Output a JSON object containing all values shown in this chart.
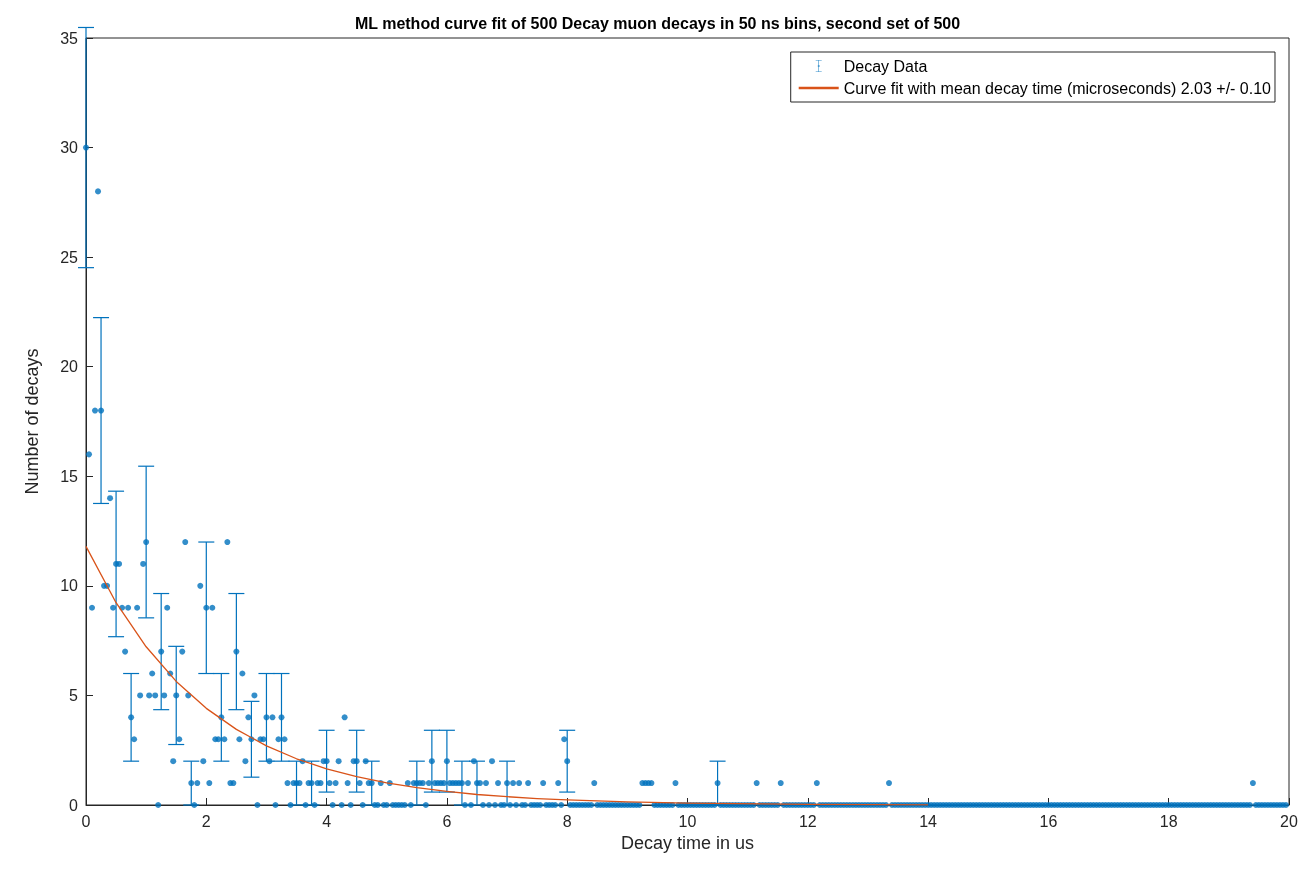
{
  "chart_data": {
    "type": "scatter",
    "title": "ML method curve fit of 500 Decay muon decays in 50 ns bins, second set of 500",
    "xlabel": "Decay time in us",
    "ylabel": "Number of decays",
    "xlim": [
      0,
      20
    ],
    "ylim": [
      0,
      35
    ],
    "xticks": [
      0,
      2,
      4,
      6,
      8,
      10,
      12,
      14,
      16,
      18,
      20
    ],
    "yticks": [
      0,
      5,
      10,
      15,
      20,
      25,
      30,
      35
    ],
    "grid": false,
    "legend": "top right",
    "series": [
      {
        "name": "Decay Data",
        "color": "#0072bd",
        "marker": "circle",
        "x": [
          0,
          0.05,
          0.1,
          0.15,
          0.2,
          0.25,
          0.3,
          0.35,
          0.4,
          0.45,
          0.5,
          0.55,
          0.6,
          0.65,
          0.7,
          0.75,
          0.8,
          0.85,
          0.9,
          0.95,
          1,
          1.05,
          1.1,
          1.15,
          1.2,
          1.25,
          1.3,
          1.35,
          1.4,
          1.45,
          1.5,
          1.55,
          1.6,
          1.65,
          1.7,
          1.75,
          1.8,
          1.85,
          1.9,
          1.95,
          2,
          2.05,
          2.1,
          2.15,
          2.2,
          2.25,
          2.3,
          2.35,
          2.4,
          2.45,
          2.5,
          2.55,
          2.6,
          2.65,
          2.7,
          2.75,
          2.8,
          2.85,
          2.9,
          2.95,
          3,
          3.05,
          3.1,
          3.15,
          3.2,
          3.25,
          3.3,
          3.35,
          3.4,
          3.45,
          3.5,
          3.55,
          3.6,
          3.65,
          3.7,
          3.75,
          3.8,
          3.85,
          3.9,
          3.95,
          4,
          4.05,
          4.1,
          4.15,
          4.2,
          4.25,
          4.3,
          4.35,
          4.4,
          4.45,
          4.5,
          4.55,
          4.6,
          4.65,
          4.7,
          4.75,
          4.8,
          4.85,
          4.9,
          4.95,
          5,
          5.05,
          5.1,
          5.15,
          5.2,
          5.25,
          5.3,
          5.35,
          5.4,
          5.45,
          5.5,
          5.55,
          5.6,
          5.65,
          5.7,
          5.75,
          5.8,
          5.85,
          5.9,
          5.95,
          6,
          6.05,
          6.1,
          6.15,
          6.2,
          6.25,
          6.3,
          6.35,
          6.4,
          6.45,
          6.5,
          6.55,
          6.6,
          6.65,
          6.7,
          6.75,
          6.8,
          6.85,
          6.9,
          6.95,
          7,
          7.05,
          7.1,
          7.15,
          7.2,
          7.25,
          7.3,
          7.35,
          7.4,
          7.45,
          7.5,
          7.55,
          7.6,
          7.65,
          7.7,
          7.75,
          7.8,
          7.85,
          7.9,
          7.95,
          8,
          8.05,
          8.1,
          8.15,
          8.2,
          8.25,
          8.3,
          8.35,
          8.4,
          8.45,
          8.5,
          8.55,
          8.6,
          8.65,
          8.7,
          8.75,
          8.8,
          8.85,
          8.9,
          8.95,
          9,
          9.05,
          9.1,
          9.15,
          9.2,
          9.25,
          9.3,
          9.35,
          9.4,
          9.45,
          9.5,
          9.55,
          9.6,
          9.65,
          9.7,
          9.75,
          9.8,
          9.85,
          9.9,
          9.95,
          10,
          10.05,
          10.1,
          10.15,
          10.2,
          10.25,
          10.3,
          10.35,
          10.4,
          10.45,
          10.5,
          10.55,
          10.6,
          10.65,
          10.7,
          10.75,
          10.8,
          10.85,
          10.9,
          10.95,
          11,
          11.05,
          11.1,
          11.15,
          11.2,
          11.25,
          11.3,
          11.35,
          11.4,
          11.45,
          11.5,
          11.55,
          11.6,
          11.65,
          11.7,
          11.75,
          11.8,
          11.85,
          11.9,
          11.95,
          12,
          12.05,
          12.1,
          12.15,
          12.2,
          12.25,
          12.3,
          12.35,
          12.4,
          12.45,
          12.5,
          12.55,
          12.6,
          12.65,
          12.7,
          12.75,
          12.8,
          12.85,
          12.9,
          12.95,
          13,
          13.05,
          13.1,
          13.15,
          13.2,
          13.25,
          13.3,
          13.35,
          13.4,
          13.45,
          13.5,
          13.55,
          13.6,
          13.65,
          13.7,
          13.75,
          13.8,
          13.85,
          13.9,
          13.95,
          14,
          14.05,
          14.1,
          14.15,
          14.2,
          14.25,
          14.3,
          14.35,
          14.4,
          14.45,
          14.5,
          14.55,
          14.6,
          14.65,
          14.7,
          14.75,
          14.8,
          14.85,
          14.9,
          14.95,
          15,
          15.05,
          15.1,
          15.15,
          15.2,
          15.25,
          15.3,
          15.35,
          15.4,
          15.45,
          15.5,
          15.55,
          15.6,
          15.65,
          15.7,
          15.75,
          15.8,
          15.85,
          15.9,
          15.95,
          16,
          16.05,
          16.1,
          16.15,
          16.2,
          16.25,
          16.3,
          16.35,
          16.4,
          16.45,
          16.5,
          16.55,
          16.6,
          16.65,
          16.7,
          16.75,
          16.8,
          16.85,
          16.9,
          16.95,
          17,
          17.05,
          17.1,
          17.15,
          17.2,
          17.25,
          17.3,
          17.35,
          17.4,
          17.45,
          17.5,
          17.55,
          17.6,
          17.65,
          17.7,
          17.75,
          17.8,
          17.85,
          17.9,
          17.95,
          18,
          18.05,
          18.1,
          18.15,
          18.2,
          18.25,
          18.3,
          18.35,
          18.4,
          18.45,
          18.5,
          18.55,
          18.6,
          18.65,
          18.7,
          18.75,
          18.8,
          18.85,
          18.9,
          18.95,
          19,
          19.05,
          19.1,
          19.15,
          19.2,
          19.25,
          19.3,
          19.35,
          19.4,
          19.45,
          19.5,
          19.55,
          19.6,
          19.65,
          19.7,
          19.75,
          19.8,
          19.85,
          19.9,
          19.95
        ],
        "values": [
          30,
          16,
          9,
          18,
          28,
          18,
          10,
          10,
          14,
          9,
          11,
          11,
          9,
          7,
          9,
          4,
          3,
          9,
          5,
          11,
          12,
          5,
          6,
          5,
          0,
          7,
          5,
          9,
          6,
          2,
          5,
          3,
          7,
          12,
          5,
          1,
          0,
          1,
          10,
          2,
          9,
          1,
          9,
          3,
          3,
          4,
          3,
          12,
          1,
          1,
          7,
          3,
          6,
          2,
          4,
          3,
          5,
          0,
          3,
          3,
          4,
          2,
          4,
          0,
          3,
          4,
          3,
          1,
          0,
          1,
          1,
          1,
          2,
          0,
          1,
          1,
          0,
          1,
          1,
          2,
          2,
          1,
          0,
          1,
          2,
          0,
          4,
          1,
          0,
          2,
          2,
          1,
          0,
          2,
          1,
          1,
          0,
          0,
          1,
          0,
          0,
          1,
          0,
          0,
          0,
          0,
          0,
          1,
          0,
          1,
          1,
          1,
          1,
          0,
          1,
          2,
          1,
          1,
          1,
          1,
          2,
          1,
          1,
          1,
          1,
          1,
          0,
          1,
          0,
          2,
          1,
          1,
          0,
          1,
          0,
          2,
          0,
          1,
          0,
          0,
          1,
          0,
          1,
          0,
          1,
          0,
          0,
          1,
          0,
          0,
          0,
          0,
          1,
          0,
          0,
          0,
          0,
          1,
          0,
          3,
          2,
          0,
          0,
          0,
          0,
          0,
          0,
          0,
          0,
          1,
          0,
          0,
          0,
          0,
          0,
          0,
          0,
          0,
          0,
          0,
          0,
          0,
          0,
          0,
          0,
          1,
          1,
          1,
          1,
          0,
          0,
          0,
          0,
          0,
          0,
          0,
          1,
          0,
          0,
          0,
          0,
          0,
          0,
          0,
          0,
          0,
          0,
          0,
          0,
          0,
          1,
          0,
          0,
          0,
          0,
          0,
          0,
          0,
          0,
          0,
          0,
          0,
          0,
          1,
          0,
          0,
          0,
          0,
          0,
          0,
          0,
          1,
          0,
          0,
          0,
          0,
          0,
          0,
          0,
          0,
          0,
          0,
          0,
          1,
          0,
          0,
          0,
          0,
          0,
          0,
          0,
          0,
          0,
          0,
          0,
          0,
          0,
          0,
          0,
          0,
          0,
          0,
          0,
          0,
          0,
          0,
          0,
          1,
          0,
          0,
          0,
          0,
          0,
          0,
          0,
          0,
          0,
          0,
          0,
          0,
          0,
          0,
          0,
          0,
          0,
          0,
          0,
          0,
          0,
          0,
          0,
          0,
          0,
          0,
          0,
          0,
          0,
          0,
          0,
          0,
          0,
          0,
          0,
          0,
          0,
          0,
          0,
          0,
          0,
          0,
          0,
          0,
          0,
          0,
          0,
          0,
          0,
          0,
          0,
          0,
          0,
          0,
          0,
          0,
          0,
          0,
          0,
          0,
          0,
          0,
          0,
          0,
          0,
          0,
          0,
          0,
          0,
          0,
          0,
          0,
          0,
          0,
          0,
          0,
          0,
          0,
          0,
          0,
          0,
          0,
          0,
          0,
          0,
          0,
          0,
          0,
          0,
          0,
          0,
          0,
          0,
          0,
          0,
          0,
          0,
          0,
          0,
          0,
          0,
          0,
          0,
          0,
          0,
          0,
          0,
          0,
          0,
          0,
          0,
          0,
          0,
          0,
          0,
          0,
          0,
          0,
          0,
          0,
          1,
          0,
          0,
          0,
          0,
          0,
          0,
          0,
          0,
          0,
          0,
          0
        ],
        "errors": [
          5.48,
          null,
          null,
          null,
          null,
          4.24,
          null,
          null,
          null,
          null,
          3.32,
          null,
          null,
          null,
          null,
          2,
          null,
          null,
          null,
          null,
          3.46,
          null,
          null,
          null,
          null,
          2.65,
          null,
          null,
          null,
          null,
          2.24,
          null,
          null,
          null,
          null,
          1,
          null,
          null,
          null,
          null,
          3,
          null,
          null,
          null,
          null,
          2,
          null,
          null,
          null,
          null,
          2.65,
          null,
          null,
          null,
          null,
          1.73,
          null,
          null,
          null,
          null,
          2,
          null,
          null,
          null,
          null,
          2,
          null,
          null,
          null,
          null,
          1,
          null,
          null,
          null,
          null,
          1,
          null,
          null,
          null,
          null,
          1.41,
          null,
          null,
          null,
          null,
          null,
          null,
          null,
          null,
          null,
          1.41,
          null,
          null,
          null,
          null,
          1,
          null,
          null,
          null,
          null,
          null,
          null,
          null,
          null,
          null,
          null,
          null,
          null,
          null,
          null,
          1,
          null,
          null,
          null,
          null,
          1.41,
          null,
          null,
          null,
          null,
          1.41,
          null,
          null,
          null,
          null,
          1,
          null,
          null,
          null,
          null,
          1,
          null,
          null,
          null,
          null,
          null,
          null,
          null,
          null,
          null,
          1,
          null,
          null,
          null,
          null,
          null,
          null,
          null,
          null,
          null,
          null,
          null,
          null,
          null,
          null,
          null,
          null,
          null,
          null,
          null,
          1.41,
          null,
          null,
          null,
          null,
          null,
          null,
          null,
          null,
          null,
          null,
          null,
          null,
          null,
          null,
          null,
          null,
          null,
          null,
          null,
          null,
          null,
          null,
          null,
          null,
          null,
          null,
          null,
          null,
          null,
          null,
          null,
          null,
          null,
          null,
          null,
          null,
          null,
          null,
          null,
          null,
          null,
          null,
          null,
          null,
          null,
          null,
          null,
          null,
          null,
          1,
          null,
          null,
          null,
          null,
          null,
          null,
          null,
          null,
          null,
          null,
          null,
          null,
          null,
          null,
          null,
          null,
          null,
          null,
          null,
          null,
          null,
          null,
          null,
          null,
          null,
          null,
          null,
          null,
          null,
          null,
          null,
          null,
          null,
          null,
          null,
          null,
          null,
          null,
          null,
          null,
          null,
          null,
          null,
          null,
          null,
          null,
          null,
          null,
          null,
          null,
          null,
          null,
          null,
          null,
          null,
          null,
          null,
          null,
          null,
          null,
          null,
          null,
          null,
          null,
          null,
          null,
          null,
          null,
          null,
          null,
          null,
          null,
          null,
          null,
          null,
          null,
          null,
          null,
          null,
          null,
          null,
          null,
          null,
          null,
          null,
          null,
          null,
          null,
          null,
          null,
          null,
          null,
          null,
          null,
          null,
          null,
          null,
          null,
          null,
          null,
          null,
          null,
          null,
          null,
          null,
          null,
          null,
          null,
          null,
          null,
          null,
          null,
          null,
          null,
          null,
          null,
          null,
          null,
          null,
          null,
          null,
          null,
          null,
          null,
          null,
          null,
          null,
          null,
          null,
          null,
          null,
          null,
          null,
          null,
          null,
          null,
          null,
          null,
          null,
          null,
          null,
          null,
          null,
          null,
          null,
          null,
          null,
          null,
          null,
          null,
          null,
          null,
          null,
          null,
          null,
          null,
          null,
          null,
          null,
          null,
          null,
          null,
          null,
          null,
          null,
          null,
          null,
          null,
          null,
          null,
          null,
          null,
          null,
          null,
          null,
          null,
          null,
          null,
          null,
          null,
          null,
          null,
          null,
          null,
          null,
          null,
          null,
          null,
          null
        ]
      },
      {
        "name": "Curve fit with mean decay time (microseconds) 2.03 +/- 0.10",
        "type": "line",
        "color": "#d95319",
        "marker": "none",
        "line_style": "solid",
        "x": [
          0,
          0.5,
          1,
          1.5,
          2,
          2.5,
          3,
          3.5,
          4,
          4.5,
          5,
          5.5,
          6,
          6.5,
          7,
          7.5,
          8,
          9,
          10,
          12,
          14
        ],
        "values": [
          11.8,
          9.23,
          7.22,
          5.64,
          4.41,
          3.45,
          2.7,
          2.11,
          1.65,
          1.29,
          1.01,
          0.79,
          0.62,
          0.48,
          0.38,
          0.29,
          0.23,
          0.14,
          0.09,
          0.03,
          0.01
        ]
      }
    ]
  }
}
